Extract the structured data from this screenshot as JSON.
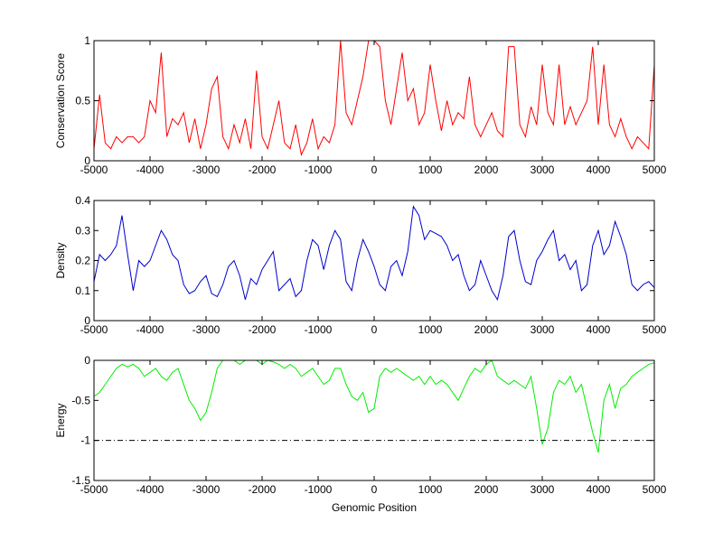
{
  "chart_data": [
    {
      "type": "line",
      "ylabel": "Conservation Score",
      "color": "#ff0000",
      "xlim": [
        -5000,
        5000
      ],
      "xticks": [
        -5000,
        -4000,
        -3000,
        -2000,
        -1000,
        0,
        1000,
        2000,
        3000,
        4000,
        5000
      ],
      "ylim": [
        0,
        1
      ],
      "yticks": [
        0,
        0.5,
        1
      ],
      "x": [
        -5000,
        -4900,
        -4800,
        -4700,
        -4600,
        -4500,
        -4400,
        -4300,
        -4200,
        -4100,
        -4000,
        -3900,
        -3800,
        -3700,
        -3600,
        -3500,
        -3400,
        -3300,
        -3200,
        -3100,
        -3000,
        -2900,
        -2800,
        -2700,
        -2600,
        -2500,
        -2400,
        -2300,
        -2200,
        -2100,
        -2000,
        -1900,
        -1800,
        -1700,
        -1600,
        -1500,
        -1400,
        -1300,
        -1200,
        -1100,
        -1000,
        -900,
        -800,
        -700,
        -600,
        -500,
        -400,
        -300,
        -200,
        -100,
        0,
        100,
        200,
        300,
        400,
        500,
        600,
        700,
        800,
        900,
        1000,
        1100,
        1200,
        1300,
        1400,
        1500,
        1600,
        1700,
        1800,
        1900,
        2000,
        2100,
        2200,
        2300,
        2400,
        2500,
        2600,
        2700,
        2800,
        2900,
        3000,
        3100,
        3200,
        3300,
        3400,
        3500,
        3600,
        3700,
        3800,
        3900,
        4000,
        4100,
        4200,
        4300,
        4400,
        4500,
        4600,
        4700,
        4800,
        4900,
        5000
      ],
      "values": [
        0.1,
        0.55,
        0.15,
        0.1,
        0.2,
        0.15,
        0.2,
        0.2,
        0.15,
        0.2,
        0.5,
        0.4,
        0.9,
        0.2,
        0.35,
        0.3,
        0.4,
        0.15,
        0.35,
        0.1,
        0.3,
        0.6,
        0.7,
        0.2,
        0.1,
        0.3,
        0.15,
        0.35,
        0.1,
        0.75,
        0.2,
        0.1,
        0.3,
        0.5,
        0.15,
        0.1,
        0.3,
        0.05,
        0.15,
        0.35,
        0.1,
        0.2,
        0.15,
        0.3,
        1,
        0.4,
        0.3,
        0.5,
        0.7,
        1,
        1,
        0.95,
        0.5,
        0.3,
        0.6,
        0.9,
        0.5,
        0.6,
        0.3,
        0.4,
        0.8,
        0.5,
        0.25,
        0.5,
        0.3,
        0.4,
        0.35,
        0.7,
        0.3,
        0.2,
        0.3,
        0.4,
        0.25,
        0.2,
        0.95,
        0.95,
        0.3,
        0.2,
        0.45,
        0.3,
        0.8,
        0.4,
        0.3,
        0.8,
        0.3,
        0.45,
        0.3,
        0.4,
        0.5,
        0.95,
        0.3,
        0.8,
        0.3,
        0.2,
        0.35,
        0.2,
        0.1,
        0.2,
        0.15,
        0.1,
        0.8
      ]
    },
    {
      "type": "line",
      "ylabel": "Density",
      "color": "#0000cc",
      "xlim": [
        -5000,
        5000
      ],
      "xticks": [
        -5000,
        -4000,
        -3000,
        -2000,
        -1000,
        0,
        1000,
        2000,
        3000,
        4000,
        5000
      ],
      "ylim": [
        0,
        0.4
      ],
      "yticks": [
        0,
        0.1,
        0.2,
        0.3,
        0.4
      ],
      "x": [
        -5000,
        -4900,
        -4800,
        -4700,
        -4600,
        -4500,
        -4400,
        -4300,
        -4200,
        -4100,
        -4000,
        -3900,
        -3800,
        -3700,
        -3600,
        -3500,
        -3400,
        -3300,
        -3200,
        -3100,
        -3000,
        -2900,
        -2800,
        -2700,
        -2600,
        -2500,
        -2400,
        -2300,
        -2200,
        -2100,
        -2000,
        -1900,
        -1800,
        -1700,
        -1600,
        -1500,
        -1400,
        -1300,
        -1200,
        -1100,
        -1000,
        -900,
        -800,
        -700,
        -600,
        -500,
        -400,
        -300,
        -200,
        -100,
        0,
        100,
        200,
        300,
        400,
        500,
        600,
        700,
        800,
        900,
        1000,
        1100,
        1200,
        1300,
        1400,
        1500,
        1600,
        1700,
        1800,
        1900,
        2000,
        2100,
        2200,
        2300,
        2400,
        2500,
        2600,
        2700,
        2800,
        2900,
        3000,
        3100,
        3200,
        3300,
        3400,
        3500,
        3600,
        3700,
        3800,
        3900,
        4000,
        4100,
        4200,
        4300,
        4400,
        4500,
        4600,
        4700,
        4800,
        4900,
        5000
      ],
      "values": [
        0.13,
        0.22,
        0.2,
        0.22,
        0.25,
        0.35,
        0.22,
        0.1,
        0.2,
        0.18,
        0.2,
        0.25,
        0.3,
        0.27,
        0.22,
        0.2,
        0.12,
        0.09,
        0.1,
        0.13,
        0.15,
        0.09,
        0.08,
        0.12,
        0.18,
        0.2,
        0.15,
        0.07,
        0.14,
        0.12,
        0.17,
        0.2,
        0.23,
        0.1,
        0.12,
        0.14,
        0.08,
        0.1,
        0.2,
        0.27,
        0.25,
        0.17,
        0.25,
        0.3,
        0.27,
        0.13,
        0.1,
        0.2,
        0.27,
        0.23,
        0.18,
        0.12,
        0.1,
        0.18,
        0.2,
        0.15,
        0.23,
        0.38,
        0.35,
        0.27,
        0.3,
        0.29,
        0.28,
        0.25,
        0.2,
        0.22,
        0.15,
        0.1,
        0.12,
        0.2,
        0.15,
        0.1,
        0.07,
        0.15,
        0.28,
        0.3,
        0.2,
        0.13,
        0.12,
        0.2,
        0.23,
        0.27,
        0.3,
        0.2,
        0.22,
        0.17,
        0.2,
        0.1,
        0.12,
        0.25,
        0.3,
        0.22,
        0.25,
        0.33,
        0.28,
        0.22,
        0.12,
        0.1,
        0.12,
        0.13,
        0.11
      ]
    },
    {
      "type": "line",
      "ylabel": "Energy",
      "xlabel": "Genomic Position",
      "color": "#00ee00",
      "xlim": [
        -5000,
        5000
      ],
      "xticks": [
        -5000,
        -4000,
        -3000,
        -2000,
        -1000,
        0,
        1000,
        2000,
        3000,
        4000,
        5000
      ],
      "ylim": [
        -1.5,
        0
      ],
      "yticks": [
        -1.5,
        -1,
        -0.5,
        0
      ],
      "hline": -1,
      "x": [
        -5000,
        -4900,
        -4800,
        -4700,
        -4600,
        -4500,
        -4400,
        -4300,
        -4200,
        -4100,
        -4000,
        -3900,
        -3800,
        -3700,
        -3600,
        -3500,
        -3400,
        -3300,
        -3200,
        -3100,
        -3000,
        -2900,
        -2800,
        -2700,
        -2600,
        -2500,
        -2400,
        -2300,
        -2200,
        -2100,
        -2000,
        -1900,
        -1800,
        -1700,
        -1600,
        -1500,
        -1400,
        -1300,
        -1200,
        -1100,
        -1000,
        -900,
        -800,
        -700,
        -600,
        -500,
        -400,
        -300,
        -200,
        -100,
        0,
        100,
        200,
        300,
        400,
        500,
        600,
        700,
        800,
        900,
        1000,
        1100,
        1200,
        1300,
        1400,
        1500,
        1600,
        1700,
        1800,
        1900,
        2000,
        2100,
        2200,
        2300,
        2400,
        2500,
        2600,
        2700,
        2800,
        2900,
        3000,
        3100,
        3200,
        3300,
        3400,
        3500,
        3600,
        3700,
        3800,
        3900,
        4000,
        4100,
        4200,
        4300,
        4400,
        4500,
        4600,
        4700,
        4800,
        4900,
        5000
      ],
      "values": [
        -0.45,
        -0.4,
        -0.3,
        -0.2,
        -0.1,
        -0.05,
        -0.08,
        -0.05,
        -0.1,
        -0.2,
        -0.15,
        -0.1,
        -0.2,
        -0.25,
        -0.15,
        -0.1,
        -0.3,
        -0.5,
        -0.6,
        -0.75,
        -0.65,
        -0.4,
        -0.1,
        0,
        0,
        0,
        -0.05,
        0,
        0,
        0,
        -0.05,
        0,
        -0.02,
        -0.05,
        -0.1,
        -0.05,
        -0.1,
        -0.2,
        -0.15,
        -0.1,
        -0.2,
        -0.3,
        -0.25,
        -0.1,
        -0.1,
        -0.3,
        -0.45,
        -0.5,
        -0.4,
        -0.65,
        -0.6,
        -0.2,
        -0.1,
        -0.15,
        -0.1,
        -0.15,
        -0.2,
        -0.25,
        -0.2,
        -0.3,
        -0.2,
        -0.3,
        -0.25,
        -0.3,
        -0.4,
        -0.5,
        -0.35,
        -0.2,
        -0.1,
        -0.15,
        -0.05,
        0,
        -0.2,
        -0.25,
        -0.3,
        -0.25,
        -0.3,
        -0.35,
        -0.2,
        -0.6,
        -1.05,
        -0.85,
        -0.4,
        -0.25,
        -0.3,
        -0.2,
        -0.4,
        -0.3,
        -0.6,
        -0.9,
        -1.15,
        -0.5,
        -0.3,
        -0.6,
        -0.35,
        -0.3,
        -0.2,
        -0.15,
        -0.1,
        -0.05,
        -0.03
      ]
    }
  ]
}
